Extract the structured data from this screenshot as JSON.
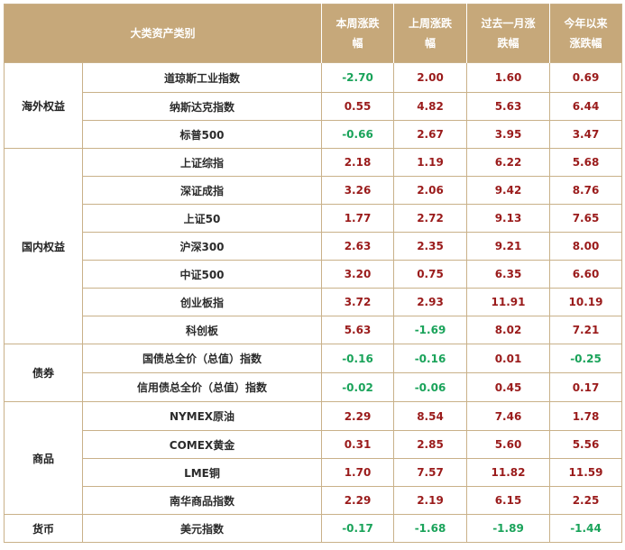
{
  "header": {
    "category": "大类资产类别",
    "col1": "本周涨跌幅",
    "col2": "上周涨跌幅",
    "col3": "过去一月涨跌幅",
    "col4": "今年以来涨跌幅"
  },
  "groups": [
    {
      "name": "海外权益",
      "rows": [
        {
          "name": "道琼斯工业指数",
          "v": [
            "-2.70",
            "2.00",
            "1.60",
            "0.69"
          ]
        },
        {
          "name": "纳斯达克指数",
          "v": [
            "0.55",
            "4.82",
            "5.63",
            "6.44"
          ]
        },
        {
          "name": "标普500",
          "v": [
            "-0.66",
            "2.67",
            "3.95",
            "3.47"
          ]
        }
      ]
    },
    {
      "name": "国内权益",
      "rows": [
        {
          "name": "上证综指",
          "v": [
            "2.18",
            "1.19",
            "6.22",
            "5.68"
          ]
        },
        {
          "name": "深证成指",
          "v": [
            "3.26",
            "2.06",
            "9.42",
            "8.76"
          ]
        },
        {
          "name": "上证50",
          "v": [
            "1.77",
            "2.72",
            "9.13",
            "7.65"
          ]
        },
        {
          "name": "沪深300",
          "v": [
            "2.63",
            "2.35",
            "9.21",
            "8.00"
          ]
        },
        {
          "name": "中证500",
          "v": [
            "3.20",
            "0.75",
            "6.35",
            "6.60"
          ]
        },
        {
          "name": "创业板指",
          "v": [
            "3.72",
            "2.93",
            "11.91",
            "10.19"
          ]
        },
        {
          "name": "科创板",
          "v": [
            "5.63",
            "-1.69",
            "8.02",
            "7.21"
          ]
        }
      ]
    },
    {
      "name": "债券",
      "rows": [
        {
          "name": "国债总全价（总值）指数",
          "v": [
            "-0.16",
            "-0.16",
            "0.01",
            "-0.25"
          ]
        },
        {
          "name": "信用债总全价（总值）指数",
          "v": [
            "-0.02",
            "-0.06",
            "0.45",
            "0.17"
          ]
        }
      ]
    },
    {
      "name": "商品",
      "rows": [
        {
          "name": "NYMEX原油",
          "v": [
            "2.29",
            "8.54",
            "7.46",
            "1.78"
          ]
        },
        {
          "name": "COMEX黄金",
          "v": [
            "0.31",
            "2.85",
            "5.60",
            "5.56"
          ]
        },
        {
          "name": "LME铜",
          "v": [
            "1.70",
            "7.57",
            "11.82",
            "11.59"
          ]
        },
        {
          "name": "南华商品指数",
          "v": [
            "2.29",
            "2.19",
            "6.15",
            "2.25"
          ]
        }
      ]
    },
    {
      "name": "货币",
      "rows": [
        {
          "name": "美元指数",
          "v": [
            "-0.17",
            "-1.68",
            "-1.89",
            "-1.44"
          ]
        }
      ]
    }
  ],
  "colors": {
    "header_bg": "#c6a87a",
    "negative": "#1aa35a",
    "positive": "#9a1b1b",
    "border": "#c9b189"
  }
}
